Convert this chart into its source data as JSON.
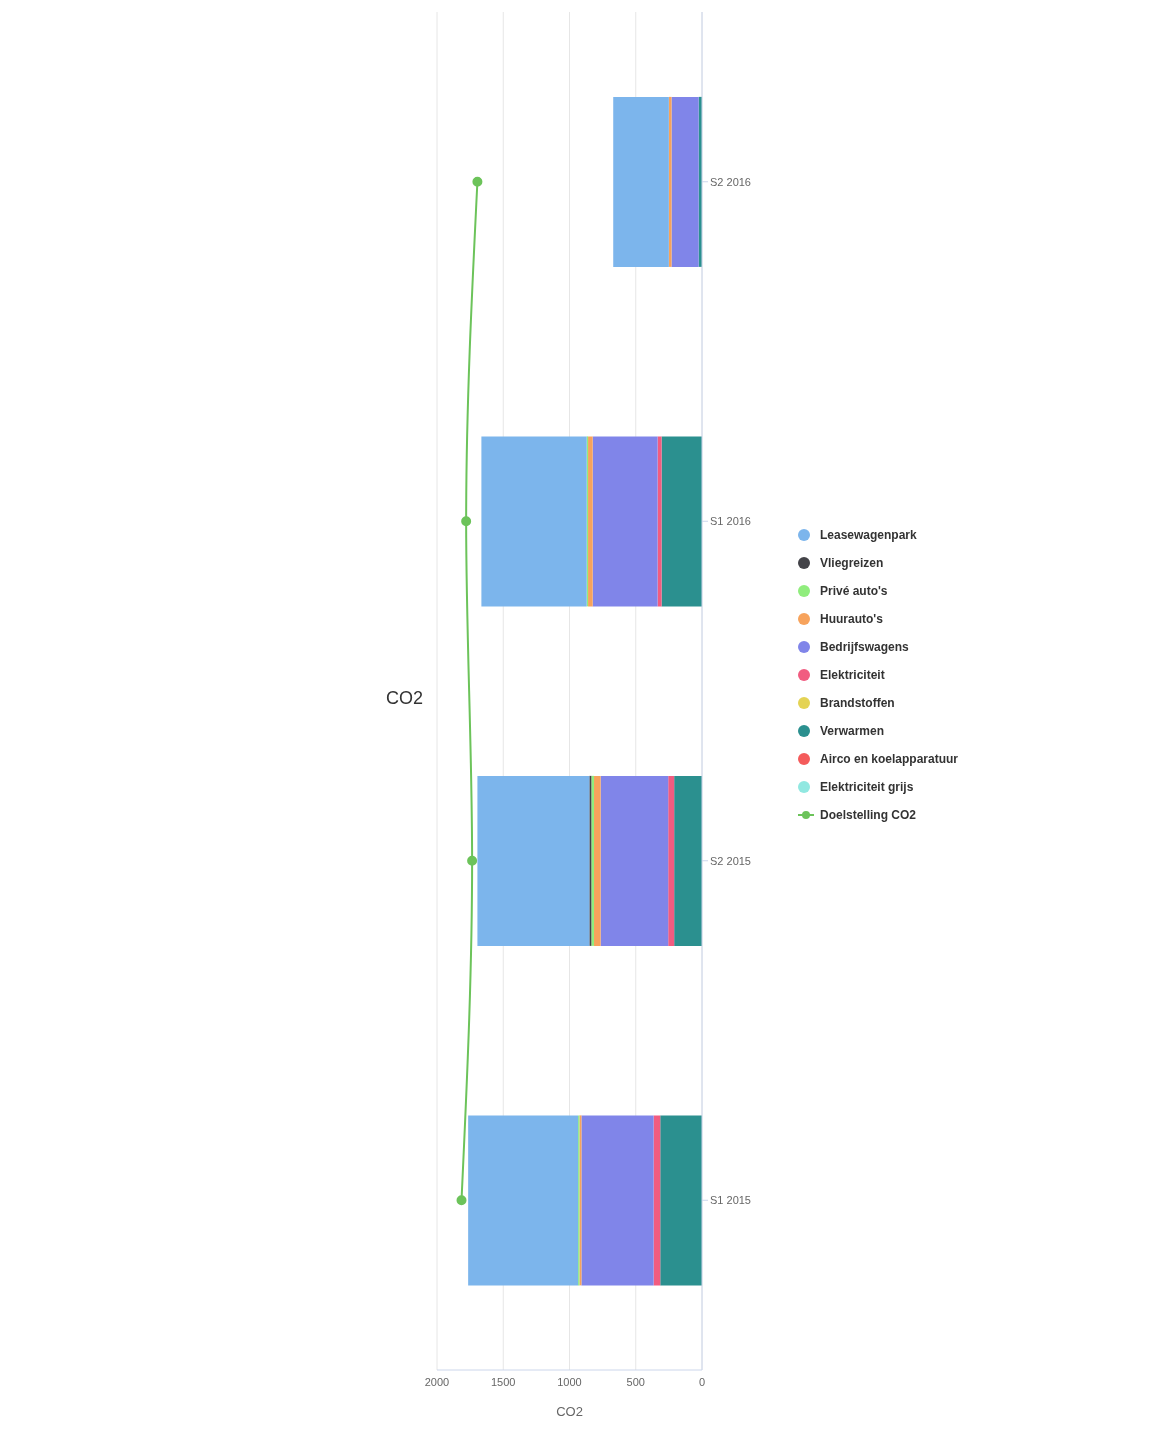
{
  "chart_data": {
    "type": "bar",
    "title": "CO2",
    "xlabel": "CO2",
    "stacked": true,
    "orientation": "horizontal",
    "categories": [
      "S2 2016",
      "S1 2016",
      "S2 2015",
      "S1 2015"
    ],
    "series": [
      {
        "name": "Elektriciteit grijs",
        "color": "#91e8e1",
        "values": [
          0,
          0,
          0,
          0
        ]
      },
      {
        "name": "Airco en koelapparatuur",
        "color": "#f45b5b",
        "values": [
          0,
          0,
          0,
          0
        ]
      },
      {
        "name": "Verwarmen",
        "color": "#2b908f",
        "values": [
          25,
          305,
          210,
          315
        ]
      },
      {
        "name": "Brandstoffen",
        "color": "#e4d354",
        "values": [
          0,
          0,
          0,
          0
        ]
      },
      {
        "name": "Elektriciteit",
        "color": "#f15c80",
        "values": [
          0,
          30,
          45,
          50
        ]
      },
      {
        "name": "Bedrijfswagens",
        "color": "#8085e9",
        "values": [
          205,
          490,
          510,
          545
        ]
      },
      {
        "name": "Huurauto's",
        "color": "#f7a35c",
        "values": [
          20,
          35,
          50,
          15
        ]
      },
      {
        "name": "Privé auto's",
        "color": "#90ed7d",
        "values": [
          0,
          10,
          20,
          10
        ]
      },
      {
        "name": "Vliegreizen",
        "color": "#434348",
        "values": [
          0,
          0,
          15,
          0
        ]
      },
      {
        "name": "Leasewagenpark",
        "color": "#7cb5ec",
        "values": [
          420,
          795,
          845,
          830
        ]
      },
      {
        "name": "Doelstelling CO2",
        "color": "#6cc35a",
        "type": "line",
        "values": [
          1695,
          1780,
          1735,
          1815
        ]
      }
    ],
    "xlim": [
      2000,
      0
    ],
    "xticks": [
      0,
      500,
      1000,
      1500,
      2000
    ],
    "grid": "x",
    "legend": "right",
    "marker": "circle"
  }
}
